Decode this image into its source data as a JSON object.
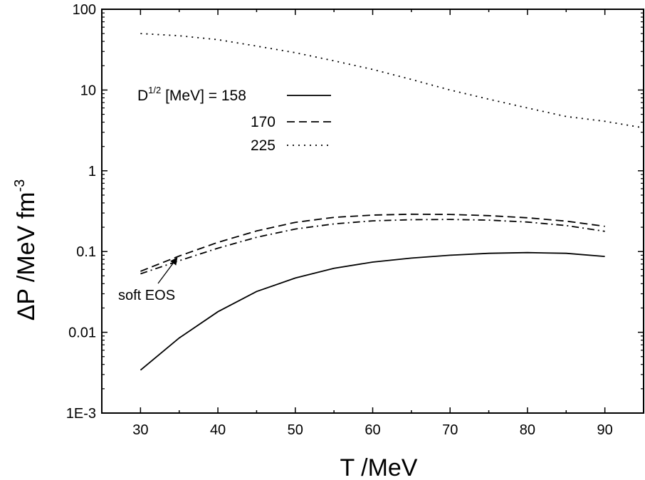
{
  "chart_data": {
    "type": "line",
    "xlabel": "T /MeV",
    "ylabel": "ΔP /MeV fm",
    "ylabel_exp": "-3",
    "xlim": [
      25,
      95
    ],
    "ylim": [
      0.001,
      100
    ],
    "y_scale": "log",
    "x_ticks": [
      30,
      40,
      50,
      60,
      70,
      80,
      90
    ],
    "x_tick_labels": [
      "30",
      "40",
      "50",
      "60",
      "70",
      "80",
      "90"
    ],
    "y_ticks": [
      0.001,
      0.01,
      0.1,
      1,
      10,
      100
    ],
    "y_tick_labels": [
      "1E-3",
      "0.01",
      "0.1",
      "1",
      "10",
      "100"
    ],
    "grid": false,
    "legend_position": "upper-left",
    "legend_title": "D",
    "legend_title_exp": "1/2",
    "legend_title_rest": " [MeV] = 158",
    "series": [
      {
        "name": "158",
        "style": "solid",
        "x": [
          30,
          35,
          40,
          45,
          50,
          55,
          60,
          65,
          70,
          75,
          80,
          85,
          90
        ],
        "y": [
          0.0034,
          0.0085,
          0.018,
          0.032,
          0.047,
          0.062,
          0.074,
          0.083,
          0.09,
          0.095,
          0.097,
          0.095,
          0.087
        ]
      },
      {
        "name": "170",
        "style": "dashed",
        "x": [
          30,
          35,
          40,
          45,
          50,
          55,
          60,
          65,
          70,
          75,
          80,
          85,
          90
        ],
        "y": [
          0.057,
          0.088,
          0.13,
          0.18,
          0.23,
          0.265,
          0.283,
          0.29,
          0.288,
          0.278,
          0.262,
          0.238,
          0.205
        ]
      },
      {
        "name": "225",
        "style": "dotted",
        "x": [
          30,
          35,
          40,
          45,
          50,
          55,
          60,
          65,
          70,
          75,
          80,
          85,
          90,
          95
        ],
        "y": [
          50,
          47,
          42,
          35,
          29,
          23,
          18,
          13.5,
          10,
          7.7,
          6.0,
          4.7,
          4.1,
          3.4
        ]
      },
      {
        "name": "soft EOS",
        "style": "dashdot",
        "x": [
          30,
          35,
          40,
          45,
          50,
          55,
          60,
          65,
          70,
          75,
          80,
          85,
          90
        ],
        "y": [
          0.053,
          0.077,
          0.11,
          0.15,
          0.19,
          0.22,
          0.24,
          0.248,
          0.25,
          0.245,
          0.232,
          0.21,
          0.178
        ]
      }
    ],
    "annotations": [
      {
        "text": "soft EOS",
        "arrow_to": {
          "x": 34.5,
          "y": 0.078
        }
      }
    ]
  }
}
